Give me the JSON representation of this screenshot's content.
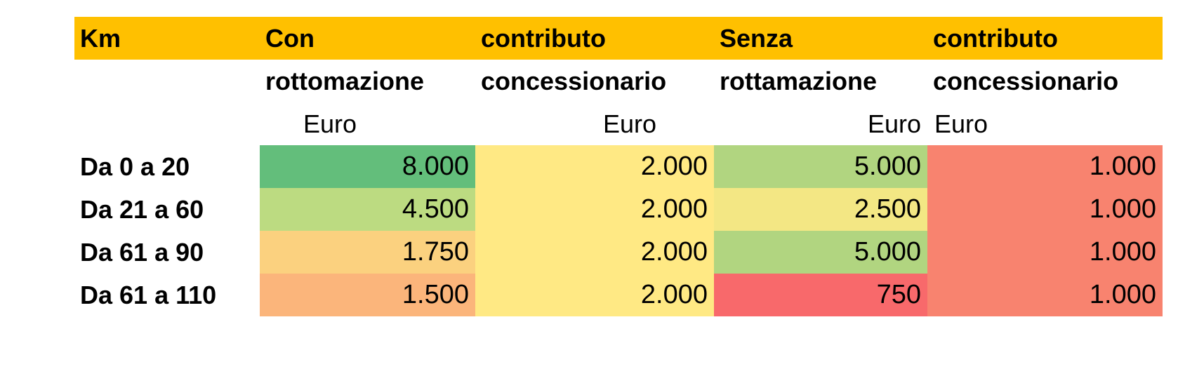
{
  "header": {
    "row1": [
      "Km",
      "Con",
      "contributo",
      "Senza",
      "contributo"
    ],
    "row2": [
      "",
      "rottomazione",
      "concessionario",
      "rottamazione",
      "concessionario"
    ],
    "units": [
      "",
      "Euro",
      "Euro",
      "Euro",
      "Euro"
    ]
  },
  "rows": [
    {
      "label": "Da 0 a 20",
      "values": [
        "8.000",
        "2.000",
        "5.000",
        "1.000"
      ]
    },
    {
      "label": "Da 21 a 60",
      "values": [
        "4.500",
        "2.000",
        "2.500",
        "1.000"
      ]
    },
    {
      "label": "Da 61 a 90",
      "values": [
        "1.750",
        "2.000",
        "5.000",
        "1.000"
      ]
    },
    {
      "label": "Da 61 a 110",
      "values": [
        "1.500",
        "2.000",
        "750",
        "1.000"
      ]
    }
  ],
  "colors": {
    "header_band": "#ffc000",
    "cells": [
      [
        "#63be7b",
        "#ffe984",
        "#b1d580",
        "#f8836f"
      ],
      [
        "#bcdb81",
        "#ffe984",
        "#f3e784",
        "#f8836f"
      ],
      [
        "#fbd17f",
        "#ffe984",
        "#b1d580",
        "#f8836f"
      ],
      [
        "#fbb57b",
        "#ffe984",
        "#f8696b",
        "#f8836f"
      ]
    ]
  }
}
